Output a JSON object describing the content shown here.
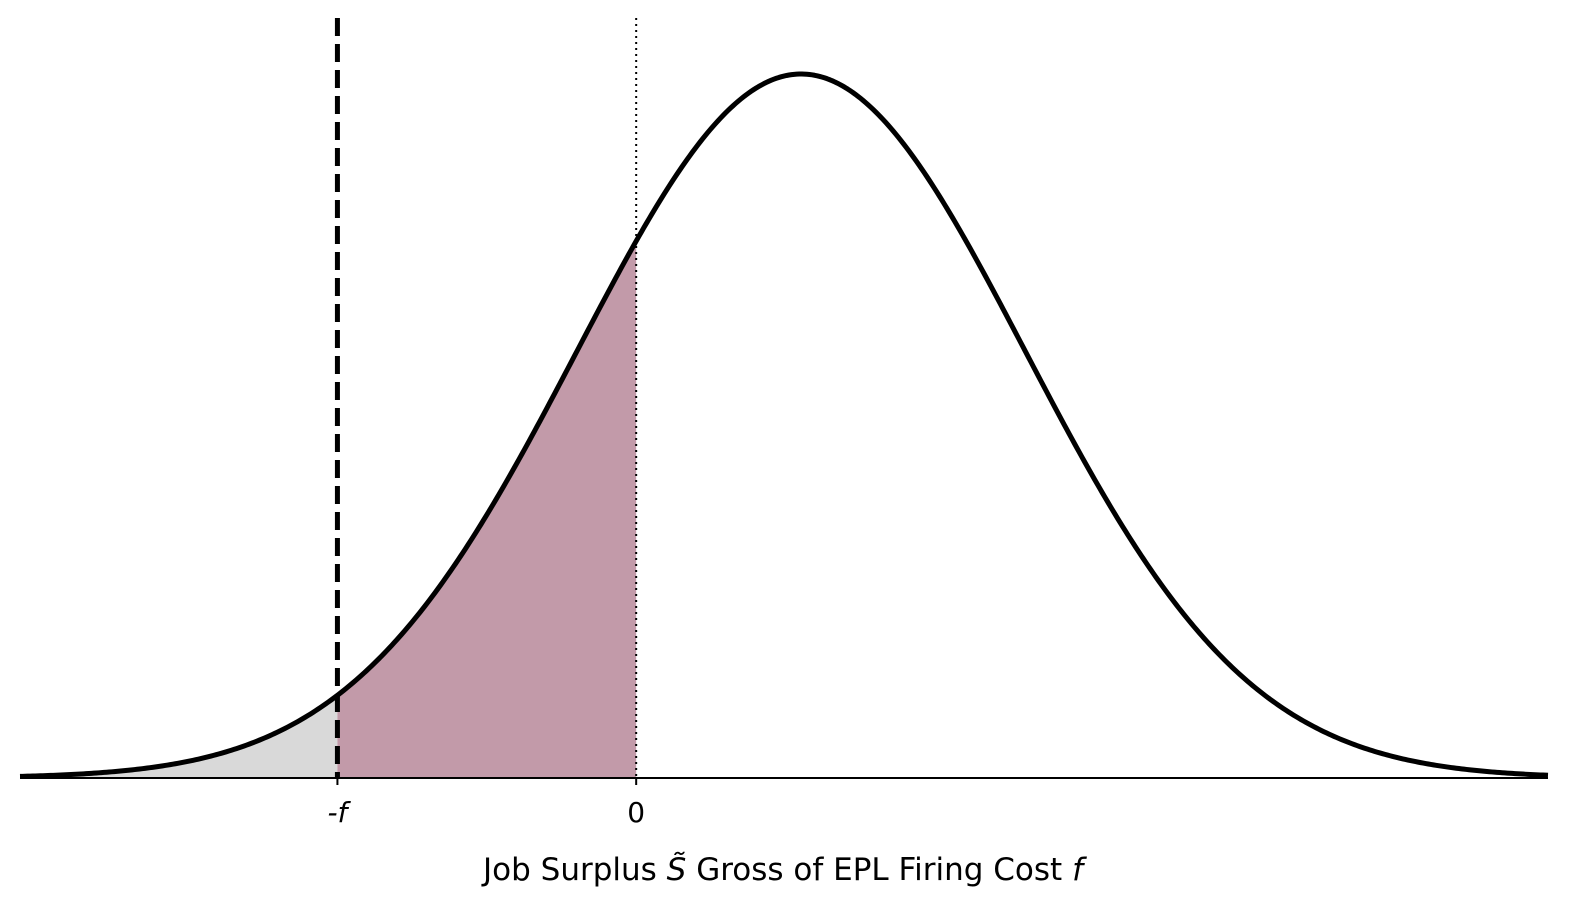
{
  "chart_data": {
    "type": "area",
    "distribution": "normal",
    "mean": 0.53,
    "sd": 0.72,
    "xlim": [
      -1.98,
      2.93
    ],
    "ylim": [
      0,
      1
    ],
    "y_axis_visible": false,
    "grid": false,
    "series": [
      {
        "values_from": "normal-pdf"
      }
    ],
    "shaded_regions": [
      {
        "x_start": -1.98,
        "x_end": -0.96,
        "color": "#d9d9d9"
      },
      {
        "x_start": -0.96,
        "x_end": 0.0,
        "color": "#c29aa9"
      }
    ],
    "reference_lines": [
      {
        "x": -0.96,
        "style": "dashed",
        "color": "#000000"
      },
      {
        "x": 0.0,
        "style": "dotted",
        "color": "#000000"
      }
    ],
    "x_ticks": [
      {
        "value": -0.96,
        "label": "-f",
        "italic": true
      },
      {
        "value": 0.0,
        "label": "0",
        "italic": false
      }
    ],
    "xlabel": {
      "prefix": "Job Surplus ",
      "symbol": "S̃",
      "middle": " Gross of EPL Firing Cost ",
      "suffix": "f"
    },
    "colors": {
      "curve": "#000000",
      "tail_fill": "#d9d9d9",
      "band_fill": "#c29aa9"
    }
  }
}
